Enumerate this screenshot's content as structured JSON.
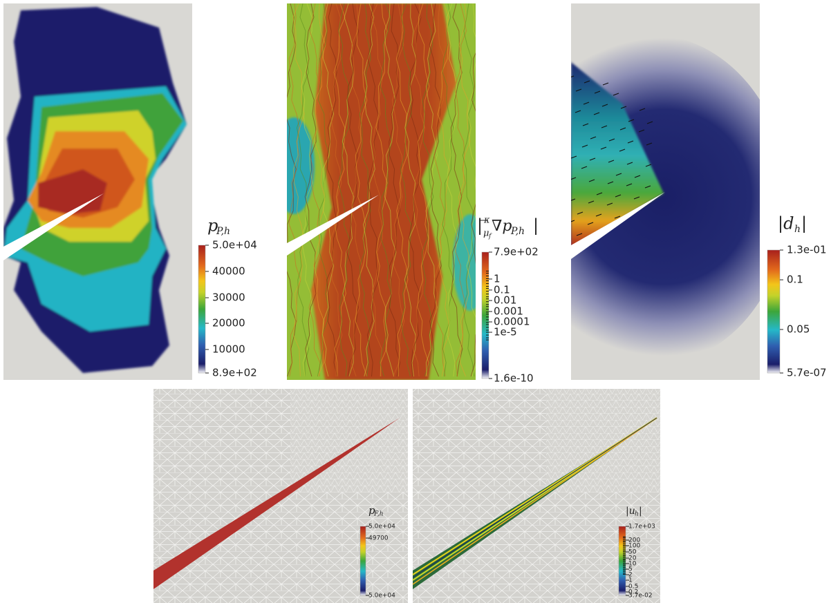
{
  "panels": [
    {
      "title": {
        "parts": [
          "p",
          "P,h"
        ]
      },
      "colorbar": {
        "labels": [
          "5.0e+04",
          "40000",
          "30000",
          "20000",
          "10000",
          "8.9e+02"
        ]
      }
    },
    {
      "title": {
        "parts": [
          "|",
          "κ",
          "μ",
          "f",
          "∇p",
          "P,h",
          "|"
        ]
      },
      "colorbar": {
        "labels": [
          "7.9e+02",
          "1",
          "0.1",
          "0.01",
          "0.001",
          "0.0001",
          "1e-5",
          "1.6e-10"
        ]
      }
    },
    {
      "title": {
        "parts": [
          "|d",
          "h",
          "|"
        ]
      },
      "colorbar": {
        "labels": [
          "1.3e-01",
          "0.1",
          "0.05",
          "5.7e-07"
        ]
      }
    },
    {
      "title": {
        "parts": [
          "p",
          "F,h"
        ]
      },
      "colorbar": {
        "labels": [
          "5.0e+04",
          "49700",
          "5.0e+04"
        ]
      }
    },
    {
      "title": {
        "parts": [
          "|u",
          "h",
          "|"
        ]
      },
      "colorbar": {
        "labels": [
          "1.7e+03",
          "200",
          "100",
          "50",
          "20",
          "10",
          "5",
          "2",
          "1",
          "0.5",
          "0.2",
          "3.7e-02"
        ]
      }
    }
  ]
}
